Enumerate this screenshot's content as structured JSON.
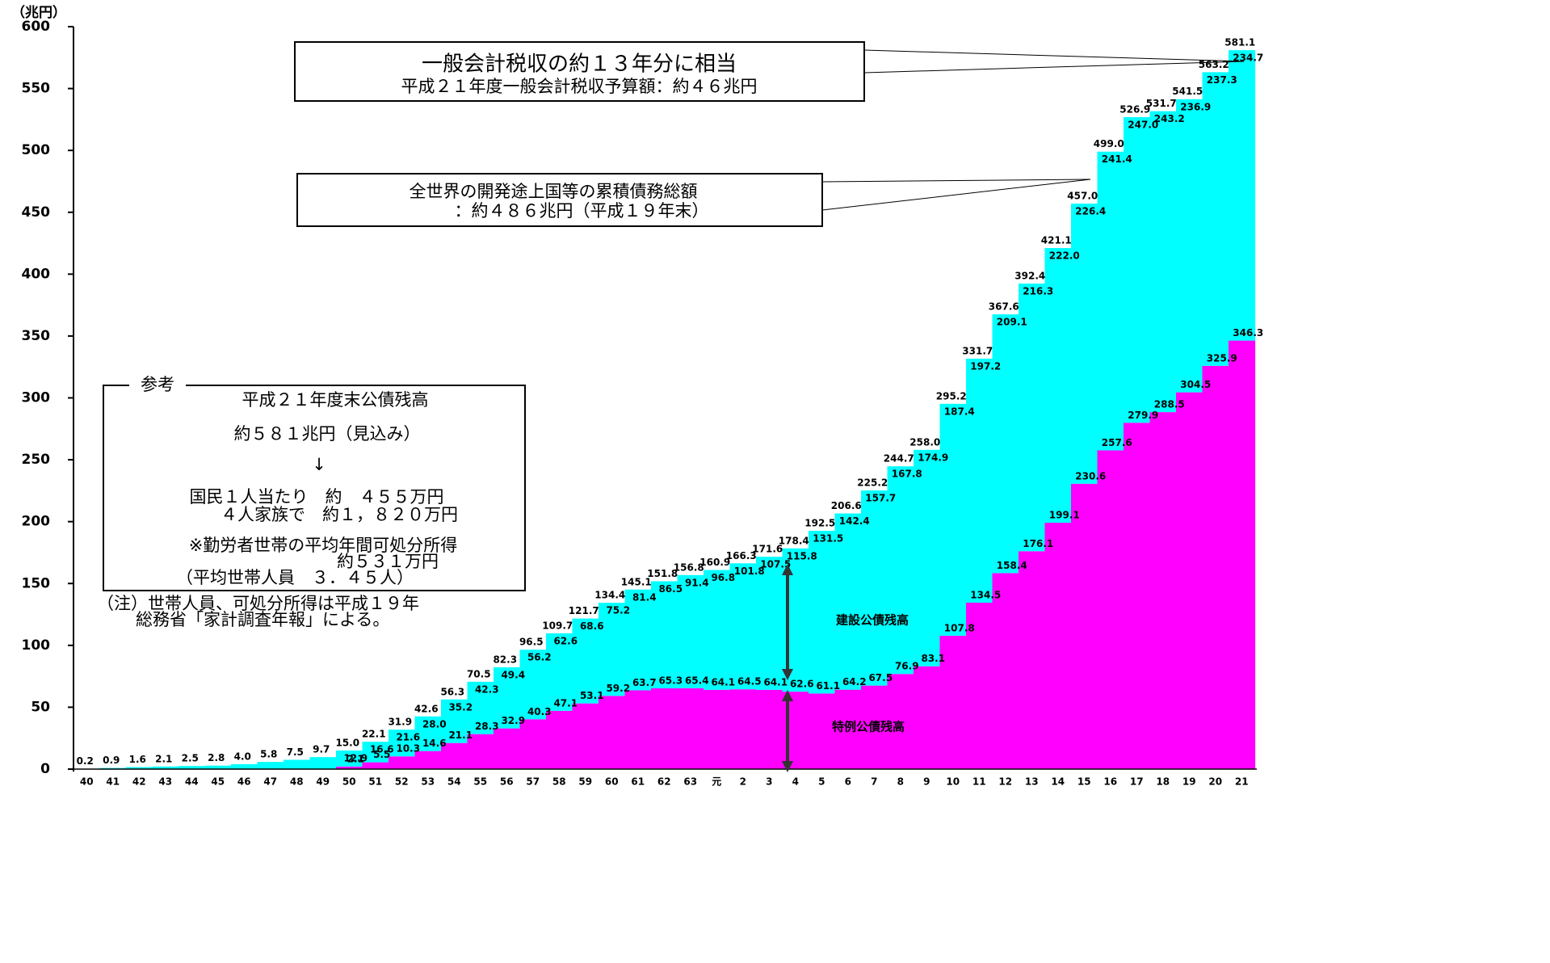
{
  "chart_data": {
    "type": "stacked-step",
    "y_unit": "（兆円）",
    "categories": [
      "40",
      "41",
      "42",
      "43",
      "44",
      "45",
      "46",
      "47",
      "48",
      "49",
      "50",
      "51",
      "52",
      "53",
      "54",
      "55",
      "56",
      "57",
      "58",
      "59",
      "60",
      "61",
      "62",
      "63",
      "元",
      "2",
      "3",
      "4",
      "5",
      "6",
      "7",
      "8",
      "9",
      "10",
      "11",
      "12",
      "13",
      "14",
      "15",
      "16",
      "17",
      "18",
      "19",
      "20",
      "21"
    ],
    "series": [
      {
        "name": "特例公債残高",
        "color": "#ff00ff",
        "values": [
          null,
          null,
          null,
          null,
          null,
          null,
          null,
          null,
          null,
          null,
          2.1,
          5.5,
          10.3,
          14.6,
          21.1,
          28.3,
          32.9,
          40.3,
          47.1,
          53.1,
          59.2,
          63.7,
          65.3,
          65.4,
          64.1,
          64.5,
          64.1,
          62.6,
          61.1,
          64.2,
          67.5,
          76.9,
          83.1,
          107.8,
          134.5,
          158.4,
          176.1,
          199.1,
          230.6,
          257.6,
          279.9,
          288.5,
          304.5,
          325.9,
          346.3
        ],
        "value_labels": [
          null,
          null,
          null,
          null,
          null,
          null,
          null,
          null,
          null,
          null,
          "2.1",
          "5.5",
          "10.3",
          "14.6",
          "21.1",
          "28.3",
          "32.9",
          "40.3",
          "47.1",
          "53.1",
          "59.2",
          "63.7",
          "65.3",
          "65.4",
          "64.1",
          "64.5",
          "64.1",
          "62.6",
          "61.1",
          "64.2",
          "67.5",
          "76.9",
          "83.1",
          "107.8",
          "134.5",
          "158.4",
          "176.1",
          "199.1",
          "230.6",
          "257.6",
          "279.9",
          "288.5",
          "304.5",
          "325.9",
          "346.3"
        ]
      },
      {
        "name": "建設公債残高",
        "color": "#00ffff",
        "values": [
          0.2,
          0.9,
          1.6,
          2.1,
          2.5,
          2.8,
          4.0,
          5.8,
          7.5,
          9.7,
          12.9,
          16.6,
          21.6,
          28.0,
          35.2,
          42.3,
          49.4,
          56.2,
          62.6,
          68.6,
          75.2,
          81.4,
          86.5,
          91.4,
          96.8,
          101.8,
          107.5,
          115.8,
          131.5,
          142.4,
          157.7,
          167.8,
          174.9,
          187.4,
          197.2,
          209.1,
          216.3,
          222.0,
          226.4,
          241.4,
          247.0,
          243.2,
          236.9,
          237.3,
          234.7
        ],
        "value_labels": [
          null,
          null,
          null,
          null,
          null,
          null,
          null,
          null,
          null,
          null,
          "12.9",
          "16.6",
          "21.6",
          "28.0",
          "35.2",
          "42.3",
          "49.4",
          "56.2",
          "62.6",
          "68.6",
          "75.2",
          "81.4",
          "86.5",
          "91.4",
          "96.8",
          "101.8",
          "107.5",
          "115.8",
          "131.5",
          "142.4",
          "157.7",
          "167.8",
          "174.9",
          "187.4",
          "197.2",
          "209.1",
          "216.3",
          "222.0",
          "226.4",
          "241.4",
          "247.0",
          "243.2",
          "236.9",
          "237.3",
          "234.7"
        ]
      }
    ],
    "totals": {
      "values": [
        0.2,
        0.9,
        1.6,
        2.1,
        2.5,
        2.8,
        4.0,
        5.8,
        7.5,
        9.7,
        15.0,
        22.1,
        31.9,
        42.6,
        56.3,
        70.5,
        82.3,
        96.5,
        109.7,
        121.7,
        134.4,
        145.1,
        151.8,
        156.8,
        160.9,
        166.3,
        171.6,
        178.4,
        192.5,
        206.6,
        225.2,
        244.7,
        258.0,
        295.2,
        331.7,
        367.6,
        392.4,
        421.1,
        457.0,
        499.0,
        526.9,
        531.7,
        541.5,
        563.2,
        581.1
      ],
      "value_labels": [
        "0.2",
        "0.9",
        "1.6",
        "2.1",
        "2.5",
        "2.8",
        "4.0",
        "5.8",
        "7.5",
        "9.7",
        "15.0",
        "22.1",
        "31.9",
        "42.6",
        "56.3",
        "70.5",
        "82.3",
        "96.5",
        "109.7",
        "121.7",
        "134.4",
        "145.1",
        "151.8",
        "156.8",
        "160.9",
        "166.3",
        "171.6",
        "178.4",
        "192.5",
        "206.6",
        "225.2",
        "244.7",
        "258.0",
        "295.2",
        "331.7",
        "367.6",
        "392.4",
        "421.1",
        "457.0",
        "499.0",
        "526.9",
        "531.7",
        "541.5",
        "563.2",
        "581.1"
      ]
    },
    "ylim": [
      0,
      600
    ],
    "yticks": [
      0,
      50,
      100,
      150,
      200,
      250,
      300,
      350,
      400,
      450,
      500,
      550,
      600
    ],
    "annotations": {
      "tax_box": [
        "一般会計税収の約１３年分に相当",
        "平成２１年度一般会計税収予算額：約４６兆円"
      ],
      "debt_box": [
        "全世界の開発途上国等の累積債務総額",
        "：約４８６兆円（平成１９年末）"
      ],
      "reference": {
        "heading": "参考",
        "lines": [
          "平成２１年度末公債残高",
          "約５８１兆円（見込み）",
          "↓",
          "国民１人当たり　約　４５５万円",
          "４人家族で　約１，８２０万円",
          "※勤労者世帯の平均年間可処分所得",
          "約５３１万円",
          "（平均世帯人員　３．４５人）"
        ]
      },
      "note": [
        "（注）世帯人員、可処分所得は平成１９年",
        "総務省「家計調査年報」による。"
      ]
    }
  }
}
